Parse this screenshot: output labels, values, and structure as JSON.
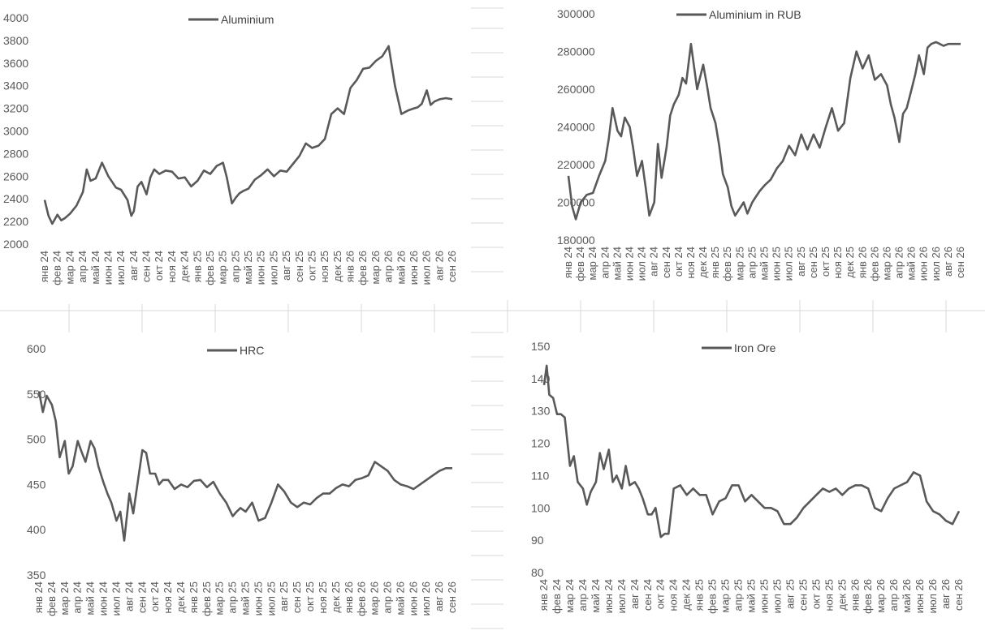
{
  "month_labels": [
    "янв 24",
    "фев 24",
    "мар 24",
    "апр 24",
    "май 24",
    "июн 24",
    "июл 24",
    "авг 24",
    "сен 24",
    "окт 24",
    "ноя 24",
    "дек 24",
    "янв 25",
    "фев 25",
    "мар 25",
    "апр 25",
    "май 25",
    "июн 25",
    "июл 25",
    "авг 25",
    "сен 25",
    "окт 25",
    "ноя 25",
    "дек 25",
    "янв 26",
    "фев 26",
    "мар 26",
    "апр 26",
    "май 26",
    "июн 26",
    "июл 26",
    "авг 26",
    "сен 26"
  ],
  "chart_data": [
    {
      "type": "line",
      "series": [
        {
          "name": "Aluminium",
          "color": "#595959",
          "x": [
            0,
            0.3,
            0.6,
            1,
            1.3,
            1.6,
            2,
            2.5,
            3,
            3.3,
            3.6,
            4,
            4.5,
            5,
            5.3,
            5.6,
            6,
            6.5,
            6.8,
            7,
            7.3,
            7.6,
            8,
            8.3,
            8.6,
            9,
            9.5,
            10,
            10.5,
            11,
            11.5,
            12,
            12.5,
            13,
            13.5,
            14,
            14.3,
            14.7,
            15,
            15.3,
            15.6,
            16,
            16.5,
            17,
            17.5,
            18,
            18.5,
            19,
            19.5,
            20,
            20.5,
            21,
            21.5,
            22,
            22.5,
            23,
            23.5,
            24,
            24.5,
            25,
            25.5,
            26,
            26.5,
            27,
            27.5,
            28,
            28.5,
            29,
            29.3,
            29.6,
            30,
            30.3,
            30.6,
            31,
            31.5,
            32
          ],
          "values": [
            2390,
            2250,
            2180,
            2260,
            2210,
            2230,
            2270,
            2340,
            2460,
            2660,
            2560,
            2580,
            2720,
            2600,
            2550,
            2500,
            2480,
            2390,
            2250,
            2290,
            2510,
            2550,
            2440,
            2590,
            2660,
            2620,
            2650,
            2640,
            2580,
            2590,
            2510,
            2560,
            2650,
            2620,
            2690,
            2720,
            2590,
            2360,
            2410,
            2450,
            2470,
            2490,
            2570,
            2610,
            2660,
            2600,
            2650,
            2640,
            2710,
            2780,
            2890,
            2850,
            2870,
            2930,
            3150,
            3200,
            3150,
            3380,
            3450,
            3550,
            3560,
            3620,
            3660,
            3750,
            3400,
            3150,
            3180,
            3200,
            3210,
            3240,
            3360,
            3230,
            3260,
            3280,
            3290,
            3280
          ]
        }
      ],
      "ylim": [
        2000,
        4000
      ],
      "yticks": [
        2000,
        2200,
        2400,
        2600,
        2800,
        3000,
        3200,
        3400,
        3600,
        3800,
        4000
      ]
    },
    {
      "type": "line",
      "series": [
        {
          "name": "Aluminium in RUB",
          "color": "#595959",
          "x": [
            0,
            0.3,
            0.6,
            1,
            1.5,
            2,
            2.5,
            3,
            3.3,
            3.6,
            4,
            4.3,
            4.6,
            5,
            5.3,
            5.6,
            6,
            6.3,
            6.6,
            7,
            7.3,
            7.6,
            8,
            8.3,
            8.6,
            9,
            9.3,
            9.6,
            10,
            10.5,
            11,
            11.3,
            11.6,
            12,
            12.3,
            12.6,
            13,
            13.3,
            13.6,
            14,
            14.3,
            14.6,
            15,
            15.3,
            15.6,
            16,
            16.5,
            17,
            17.5,
            18,
            18.5,
            19,
            19.5,
            20,
            20.5,
            21,
            21.5,
            22,
            22.5,
            23,
            23.5,
            24,
            24.5,
            25,
            25.5,
            26,
            26.3,
            26.6,
            27,
            27.3,
            27.6,
            28,
            28.3,
            28.6,
            29,
            29.3,
            29.6,
            30,
            30.3,
            30.6,
            31,
            31.5,
            32
          ],
          "values": [
            214000,
            198000,
            191000,
            200000,
            204000,
            205000,
            214000,
            222000,
            234000,
            250000,
            238000,
            235000,
            245000,
            240000,
            228000,
            214000,
            222000,
            208000,
            193000,
            200000,
            231000,
            213000,
            229000,
            246000,
            252000,
            257000,
            266000,
            263000,
            284000,
            260000,
            273000,
            262000,
            250000,
            242000,
            230000,
            215000,
            208000,
            198000,
            193000,
            197000,
            200000,
            194000,
            200000,
            203000,
            206000,
            209000,
            212000,
            218000,
            222000,
            230000,
            225000,
            236000,
            228000,
            236000,
            229000,
            240000,
            250000,
            238000,
            242000,
            266000,
            280000,
            271000,
            278000,
            265000,
            268000,
            262000,
            252000,
            245000,
            232000,
            247000,
            250000,
            260000,
            268000,
            278000,
            268000,
            282000,
            284000,
            285000,
            284000,
            283000,
            284000,
            284000,
            284000
          ]
        }
      ],
      "ylim": [
        180000,
        300000
      ],
      "yticks": [
        180000,
        200000,
        220000,
        240000,
        260000,
        280000,
        300000
      ]
    },
    {
      "type": "line",
      "series": [
        {
          "name": "HRC",
          "color": "#595959",
          "x": [
            0,
            0.3,
            0.6,
            1,
            1.3,
            1.6,
            2,
            2.3,
            2.6,
            3,
            3.3,
            3.6,
            4,
            4.3,
            4.6,
            5,
            5.3,
            5.6,
            6,
            6.3,
            6.6,
            7,
            7.3,
            7.6,
            8,
            8.3,
            8.6,
            9,
            9.3,
            9.6,
            10,
            10.5,
            11,
            11.5,
            12,
            12.5,
            13,
            13.5,
            14,
            14.5,
            15,
            15.3,
            15.6,
            16,
            16.5,
            17,
            17.5,
            18,
            18.5,
            19,
            19.5,
            20,
            20.5,
            21,
            21.5,
            22,
            22.5,
            23,
            23.5,
            24,
            24.5,
            25,
            25.5,
            26,
            26.5,
            27,
            27.5,
            28,
            28.5,
            29,
            29.5,
            30,
            30.5,
            31,
            31.5,
            32
          ],
          "values": [
            553,
            530,
            548,
            538,
            520,
            480,
            498,
            462,
            470,
            498,
            486,
            475,
            498,
            490,
            470,
            452,
            440,
            430,
            410,
            420,
            388,
            440,
            418,
            448,
            488,
            485,
            462,
            462,
            450,
            455,
            455,
            445,
            450,
            447,
            454,
            455,
            447,
            453,
            440,
            430,
            415,
            420,
            424,
            420,
            430,
            410,
            413,
            430,
            450,
            442,
            430,
            425,
            430,
            428,
            435,
            440,
            440,
            446,
            450,
            448,
            455,
            457,
            460,
            475,
            470,
            465,
            455,
            450,
            448,
            445,
            450,
            455,
            460,
            465,
            468,
            468
          ]
        }
      ],
      "ylim": [
        350,
        600
      ],
      "yticks": [
        350,
        400,
        450,
        500,
        550,
        600
      ]
    },
    {
      "type": "line",
      "series": [
        {
          "name": "Iron Ore",
          "color": "#595959",
          "x": [
            0,
            0.2,
            0.4,
            0.7,
            1,
            1.3,
            1.6,
            2,
            2.3,
            2.6,
            3,
            3.3,
            3.6,
            4,
            4.3,
            4.6,
            5,
            5.3,
            5.6,
            6,
            6.3,
            6.6,
            7,
            7.3,
            7.6,
            8,
            8.3,
            8.6,
            9,
            9.3,
            9.6,
            10,
            10.5,
            11,
            11.5,
            12,
            12.5,
            13,
            13.5,
            14,
            14.5,
            15,
            15.5,
            16,
            16.5,
            17,
            17.5,
            18,
            18.5,
            19,
            19.5,
            20,
            20.5,
            21,
            21.5,
            22,
            22.5,
            23,
            23.5,
            24,
            24.5,
            25,
            25.5,
            26,
            26.5,
            27,
            27.5,
            28,
            28.5,
            29,
            29.5,
            30,
            30.5,
            31,
            31.5,
            32
          ],
          "values": [
            138,
            144,
            135,
            134,
            129,
            129,
            128,
            113,
            116,
            108,
            106,
            101,
            105,
            108,
            117,
            112,
            118,
            108,
            110,
            106,
            113,
            107,
            108,
            106,
            103,
            98,
            98,
            100,
            91,
            92,
            92,
            106,
            107,
            104,
            106,
            104,
            104,
            98,
            102,
            103,
            107,
            107,
            102,
            104,
            102,
            100,
            100,
            99,
            95,
            95,
            97,
            100,
            102,
            104,
            106,
            105,
            106,
            104,
            106,
            107,
            107,
            106,
            100,
            99,
            103,
            106,
            107,
            108,
            111,
            110,
            102,
            99,
            98,
            96,
            95,
            99
          ]
        }
      ],
      "ylim": [
        80,
        150
      ],
      "yticks": [
        80,
        90,
        100,
        110,
        120,
        130,
        140,
        150
      ]
    }
  ]
}
